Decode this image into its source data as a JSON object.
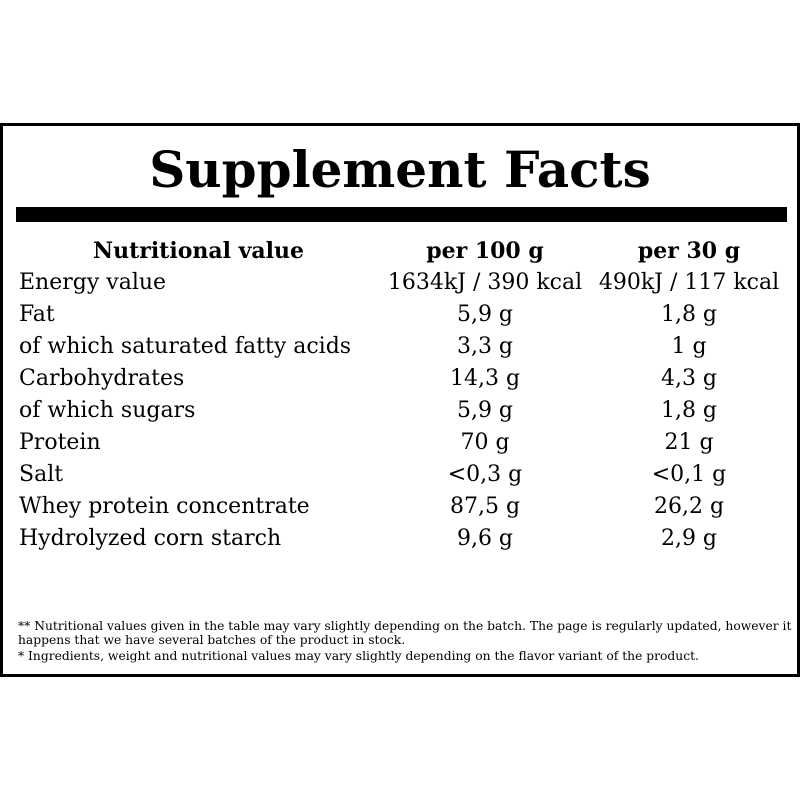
{
  "header": {
    "title": "Supplement Facts"
  },
  "table": {
    "columns": [
      "Nutritional value",
      "per 100 g",
      "per 30 g"
    ],
    "rows": [
      [
        "Energy value",
        "1634kJ / 390 kcal",
        "490kJ / 117 kcal"
      ],
      [
        "Fat",
        "5,9 g",
        "1,8 g"
      ],
      [
        "of which saturated fatty acids",
        "3,3 g",
        "1 g"
      ],
      [
        "Carbohydrates",
        "14,3 g",
        "4,3 g"
      ],
      [
        "of which sugars",
        "5,9 g",
        "1,8 g"
      ],
      [
        "Protein",
        "70 g",
        "21 g"
      ],
      [
        "Salt",
        "<0,3 g",
        "<0,1 g"
      ],
      [
        "Whey protein concentrate",
        "87,5 g",
        "26,2 g"
      ],
      [
        "Hydrolyzed corn starch",
        "9,6 g",
        "2,9 g"
      ]
    ]
  },
  "footnotes": [
    "** Nutritional values given in the table may vary slightly depending on the batch. The page is regularly updated, however it happens that we have several batches of the product in stock.",
    "* Ingredients, weight and nutritional values may vary slightly depending on the flavor variant of the product."
  ]
}
